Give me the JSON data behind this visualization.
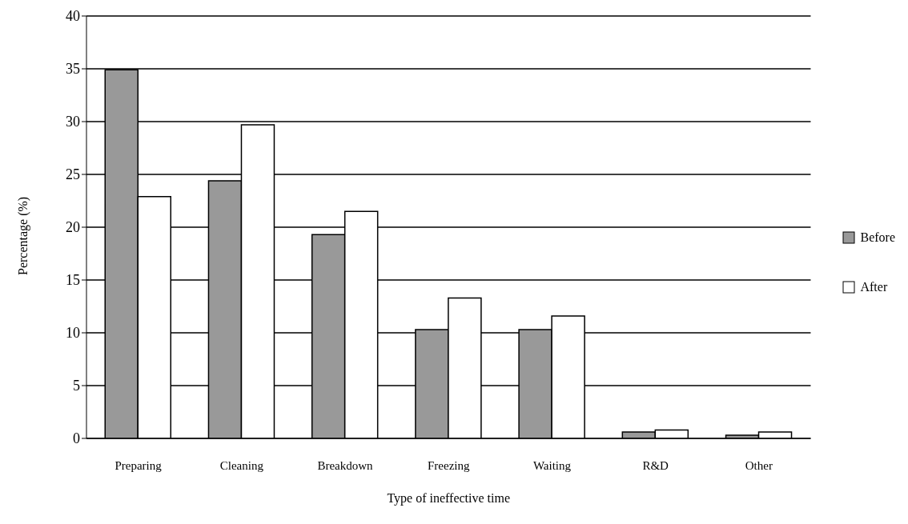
{
  "chart_data": {
    "type": "bar",
    "xlabel": "Type of ineffective time",
    "ylabel": "Percentage (%)",
    "categories": [
      "Preparing",
      "Cleaning",
      "Breakdown",
      "Freezing",
      "Waiting",
      "R&D",
      "Other"
    ],
    "series": [
      {
        "name": "Before",
        "color": "#999999",
        "values": [
          34.9,
          24.4,
          19.3,
          10.3,
          10.3,
          0.6,
          0.3
        ]
      },
      {
        "name": "After",
        "color": "#ffffff",
        "values": [
          22.9,
          29.7,
          21.5,
          13.3,
          11.6,
          0.8,
          0.6
        ]
      }
    ],
    "ylim": [
      0,
      40
    ],
    "yticks": [
      0,
      5,
      10,
      15,
      20,
      25,
      30,
      35,
      40
    ],
    "grid": "y",
    "legend": "right"
  }
}
